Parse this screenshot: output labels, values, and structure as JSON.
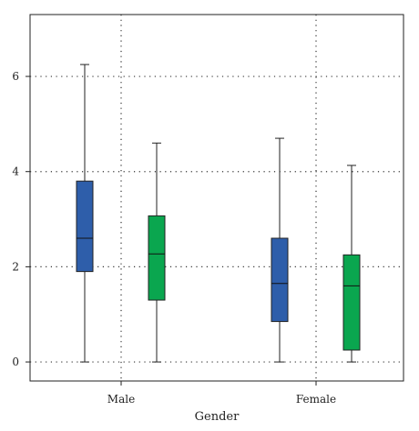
{
  "chart_data": {
    "type": "box",
    "title": "",
    "xlabel": "Gender",
    "ylabel": "",
    "ylim": [
      -0.4,
      7.3
    ],
    "yticks": [
      0,
      2,
      4,
      6
    ],
    "grid": true,
    "legend": "none",
    "categories": [
      "Male",
      "Female"
    ],
    "series": [
      {
        "color": "#2e5eaa",
        "boxes": [
          {
            "category": "Male",
            "min": 0,
            "q1": 1.9,
            "median": 2.6,
            "q3": 3.8,
            "max": 6.25
          },
          {
            "category": "Female",
            "min": 0,
            "q1": 0.85,
            "median": 1.65,
            "q3": 2.6,
            "max": 4.7
          }
        ]
      },
      {
        "color": "#0aa64f",
        "boxes": [
          {
            "category": "Male",
            "min": 0,
            "q1": 1.3,
            "median": 2.27,
            "q3": 3.07,
            "max": 4.6
          },
          {
            "category": "Female",
            "min": 0,
            "q1": 0.25,
            "median": 1.6,
            "q3": 2.25,
            "max": 4.13
          }
        ]
      }
    ]
  }
}
